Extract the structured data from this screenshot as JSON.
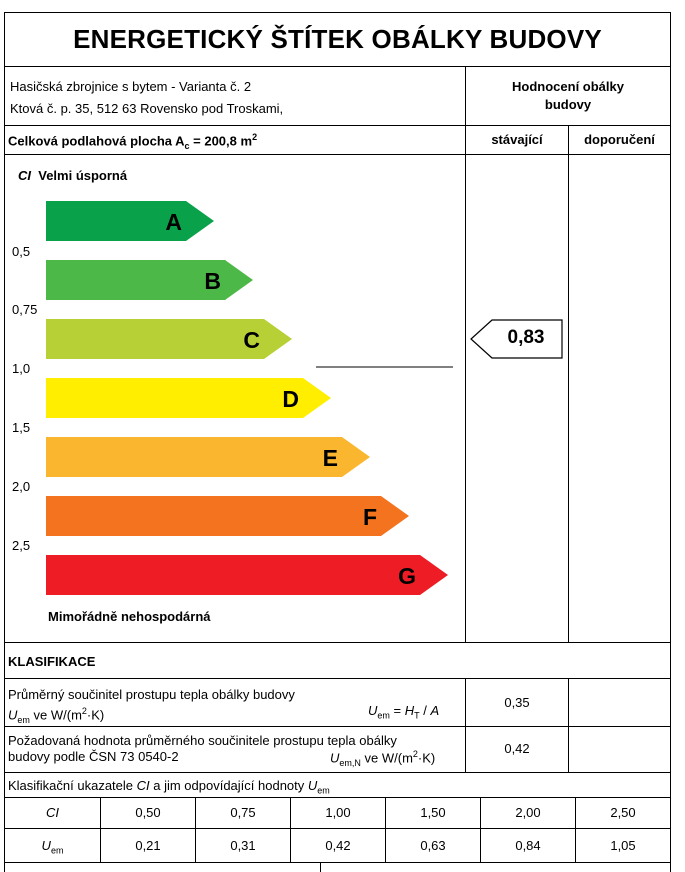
{
  "title": "ENERGETICKÝ ŠTÍTEK OBÁLKY BUDOVY",
  "building": {
    "name": "Hasičská zbrojnice s bytem - Varianta č. 2",
    "address": "Ktová č. p. 35, 512 63 Rovensko pod Troskami,"
  },
  "evaluation_header": {
    "line1": "Hodnocení obálky",
    "line2": "budovy"
  },
  "floor_area": {
    "prefix": "Celková podlahová plocha A",
    "sub": "c",
    "value": " =  200,8 m",
    "sup": "2"
  },
  "columns": {
    "current": "stávající",
    "recommended": "doporučení"
  },
  "scale": {
    "ci_label": "CI",
    "top_label": "Velmi úsporná",
    "bottom_label": "Mimořádně nehospodárná",
    "ticks": [
      "0,5",
      "0,75",
      "1,0",
      "1,5",
      "2,0",
      "2,5"
    ]
  },
  "classes": [
    {
      "letter": "A",
      "color": "#0aa14b"
    },
    {
      "letter": "B",
      "color": "#4cb848"
    },
    {
      "letter": "C",
      "color": "#b7d035"
    },
    {
      "letter": "D",
      "color": "#ffee00"
    },
    {
      "letter": "E",
      "color": "#fbb630"
    },
    {
      "letter": "F",
      "color": "#f3731f"
    },
    {
      "letter": "G",
      "color": "#ee1c25"
    }
  ],
  "current_value": "0,83",
  "klasifikace": "KLASIFIKACE",
  "row_uem": {
    "line1": "Průměrný součinitel prostupu tepla obálky budovy",
    "line2_a": "U",
    "line2_sub": "em",
    "line2_b": " ve W/(m",
    "line2_sup": "2",
    "line2_c": "·K)",
    "formula_a": "U",
    "formula_sub": "em",
    "formula_b": " = ",
    "formula_c": "H",
    "formula_sub2": "T",
    "formula_d": " / ",
    "formula_e": "A",
    "value": "0,35"
  },
  "row_uemn": {
    "line1": "Požadovaná hodnota průměrného součinitele prostupu tepla obálky",
    "line2": "budovy podle ČSN 73 0540-2",
    "formula_a": "U",
    "formula_sub": "em,N",
    "formula_b": " ve W/(m",
    "formula_sup": "2",
    "formula_c": "·K)",
    "value": "0,42"
  },
  "row_indicators": {
    "text_a": "Klasifikační ukazatele ",
    "text_ci": "CI",
    "text_b": " a jim odpovídající hodnoty ",
    "text_u": "U",
    "text_sub": "em"
  },
  "table": {
    "ci_label": "CI",
    "uem_label": "U",
    "uem_sub": "em",
    "ci_values": [
      "0,50",
      "0,75",
      "1,00",
      "1,50",
      "2,00",
      "2,50"
    ],
    "uem_values": [
      "0,21",
      "0,31",
      "0,42",
      "0,63",
      "0,84",
      "1,05"
    ]
  }
}
